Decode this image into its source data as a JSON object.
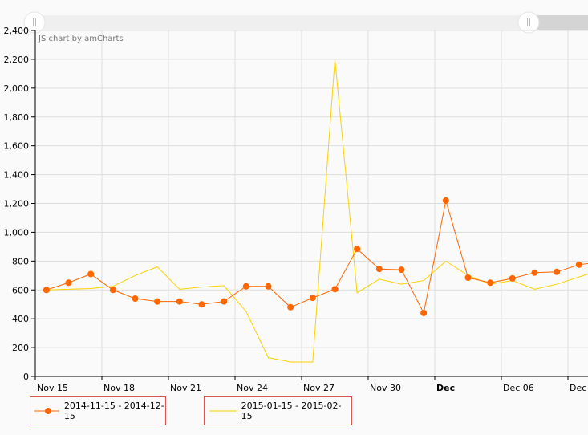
{
  "chart_data": {
    "type": "line",
    "title": "",
    "credit": "JS chart by amCharts",
    "xlabel": "",
    "ylabel": "",
    "ylim": [
      0,
      2400
    ],
    "y_ticks": [
      "0",
      "200",
      "400",
      "600",
      "800",
      "1,000",
      "1,200",
      "1,400",
      "1,600",
      "1,800",
      "2,000",
      "2,200",
      "2,400"
    ],
    "x_tick_labels": [
      {
        "label": "Nov 15",
        "day": 0,
        "bold": false
      },
      {
        "label": "Nov 18",
        "day": 3,
        "bold": false
      },
      {
        "label": "Nov 21",
        "day": 6,
        "bold": false
      },
      {
        "label": "Nov 24",
        "day": 9,
        "bold": false
      },
      {
        "label": "Nov 27",
        "day": 12,
        "bold": false
      },
      {
        "label": "Nov 30",
        "day": 15,
        "bold": false
      },
      {
        "label": "Dec",
        "day": 18,
        "bold": true
      },
      {
        "label": "Dec 06",
        "day": 21,
        "bold": false
      },
      {
        "label": "Dec",
        "day": 24,
        "bold": false
      }
    ],
    "categories": [
      "Nov 15",
      "Nov 16",
      "Nov 17",
      "Nov 18",
      "Nov 19",
      "Nov 20",
      "Nov 21",
      "Nov 22",
      "Nov 23",
      "Nov 24",
      "Nov 25",
      "Nov 26",
      "Nov 27",
      "Nov 28",
      "Nov 29",
      "Nov 30",
      "Dec 01",
      "Dec 02",
      "Dec 03",
      "Dec 04",
      "Dec 05",
      "Dec 06",
      "Dec 07",
      "Dec 08",
      "Dec 09",
      "Dec 10"
    ],
    "series": [
      {
        "name": "2014-11-15 - 2014-12-15",
        "color": "#ff6600",
        "bullets": true,
        "values": [
          600,
          650,
          710,
          600,
          540,
          520,
          520,
          500,
          520,
          625,
          625,
          480,
          545,
          605,
          885,
          745,
          740,
          440,
          1220,
          685,
          650,
          680,
          720,
          725,
          775,
          795
        ]
      },
      {
        "name": "2015-01-15 - 2015-02-15",
        "color": "#fcd202",
        "bullets": false,
        "values": [
          600,
          605,
          610,
          625,
          700,
          760,
          605,
          620,
          630,
          450,
          130,
          100,
          100,
          2200,
          580,
          675,
          640,
          665,
          800,
          700,
          640,
          665,
          605,
          640,
          690,
          740
        ]
      }
    ],
    "grid": true,
    "legend_position": "bottom",
    "scrollbar": {
      "visible": true
    }
  },
  "legend": [
    {
      "label": "2014-11-15 - 2014-12-15"
    },
    {
      "label": "2015-01-15 - 2015-02-15"
    }
  ]
}
